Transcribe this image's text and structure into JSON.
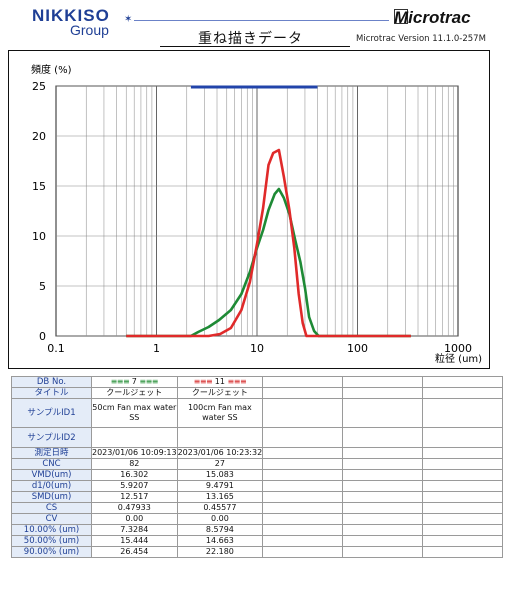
{
  "header": {
    "logo_main": "NIKKISO",
    "logo_sub": "Group",
    "brand": "Microtrac",
    "title": "重ね描きデータ",
    "version": "Microtrac Version 11.1.0-257M"
  },
  "colors": {
    "series1": "#1e8a35",
    "series2": "#e02a2a",
    "range_bar": "#2244aa",
    "label_bg": "#e4ecf8"
  },
  "chart_data": {
    "type": "line",
    "ylabel": "頻度 (%)",
    "xlabel": "粒径 (um)",
    "x_scale": "log",
    "xlim": [
      0.1,
      1000
    ],
    "ylim": [
      0,
      25
    ],
    "x_ticks": [
      "0.1",
      "1",
      "10",
      "100",
      "1000"
    ],
    "y_ticks": [
      "0",
      "5",
      "10",
      "15",
      "20",
      "25"
    ],
    "grid": true,
    "range_bar": [
      2.2,
      40
    ],
    "series": [
      {
        "name": "7",
        "color": "#1e8a35",
        "points": [
          [
            0.5,
            0
          ],
          [
            2.2,
            0
          ],
          [
            2.6,
            0.4
          ],
          [
            3.3,
            0.9
          ],
          [
            4.2,
            1.6
          ],
          [
            5.5,
            2.6
          ],
          [
            7,
            4.2
          ],
          [
            8.5,
            6.4
          ],
          [
            10,
            8.8
          ],
          [
            11.5,
            10.6
          ],
          [
            13,
            12.6
          ],
          [
            15,
            14.2
          ],
          [
            16.5,
            14.7
          ],
          [
            18.5,
            13.8
          ],
          [
            21,
            12.2
          ],
          [
            24,
            9.6
          ],
          [
            27,
            7.4
          ],
          [
            30,
            4.8
          ],
          [
            33,
            1.9
          ],
          [
            37,
            0.5
          ],
          [
            41,
            0
          ],
          [
            340,
            0
          ]
        ]
      },
      {
        "name": "11",
        "color": "#e02a2a",
        "points": [
          [
            0.5,
            0
          ],
          [
            3.3,
            0
          ],
          [
            4.3,
            0.2
          ],
          [
            5.5,
            0.8
          ],
          [
            7,
            2.6
          ],
          [
            8.5,
            5.4
          ],
          [
            10,
            9.2
          ],
          [
            11.5,
            12.8
          ],
          [
            13,
            17.1
          ],
          [
            14.5,
            18.3
          ],
          [
            16.5,
            18.6
          ],
          [
            18.5,
            15.9
          ],
          [
            21,
            12.6
          ],
          [
            23.5,
            8.8
          ],
          [
            26,
            4.2
          ],
          [
            28.5,
            1.3
          ],
          [
            31,
            0
          ],
          [
            340,
            0
          ]
        ]
      }
    ]
  },
  "table": {
    "rows": [
      {
        "label": "DB No.",
        "v1": "7",
        "v2": "11"
      },
      {
        "label": "タイトル",
        "v1": "クールジェット",
        "v2": "クールジェット"
      },
      {
        "label": "サンプルID1",
        "v1": "50cm Fan max water SS",
        "v2": "100cm Fan max water SS"
      },
      {
        "label": "サンプルID2",
        "v1": "",
        "v2": ""
      },
      {
        "label": "測定日時",
        "v1": "2023/01/06 10:09:13",
        "v2": "2023/01/06 10:23:32"
      },
      {
        "label": "CNC",
        "v1": "82",
        "v2": "27"
      },
      {
        "label": "VMD(um)",
        "v1": "16.302",
        "v2": "15.083"
      },
      {
        "label": "d1/0(um)",
        "v1": "5.9207",
        "v2": "9.4791"
      },
      {
        "label": "SMD(um)",
        "v1": "12.517",
        "v2": "13.165"
      },
      {
        "label": "CS",
        "v1": "0.47933",
        "v2": "0.45577"
      },
      {
        "label": "CV",
        "v1": "0.00",
        "v2": "0.00"
      },
      {
        "label": "10.00% (um)",
        "v1": "7.3284",
        "v2": "8.5794"
      },
      {
        "label": "50.00% (um)",
        "v1": "15.444",
        "v2": "14.663"
      },
      {
        "label": "90.00% (um)",
        "v1": "26.454",
        "v2": "22.180"
      }
    ]
  }
}
